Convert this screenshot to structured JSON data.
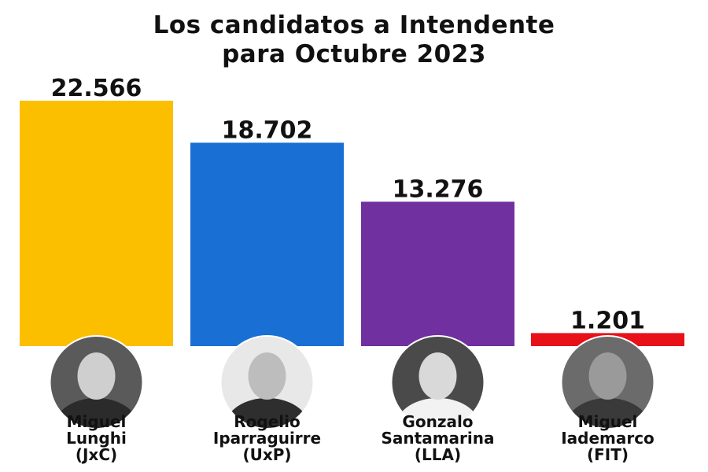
{
  "title_lines": [
    "Los candidatos a Intendente",
    "para Octubre 2023"
  ],
  "chart_data": {
    "type": "bar",
    "title": "Los candidatos a Intendente para Octubre 2023",
    "xlabel": "",
    "ylabel": "",
    "categories": [
      "Miguel Lunghi (JxC)",
      "Rogelio Iparraguirre (UxP)",
      "Gonzalo Santamarina (LLA)",
      "Miguel Iademarco (FIT)"
    ],
    "category_lines": [
      [
        "Miguel",
        "Lunghi",
        "(JxC)"
      ],
      [
        "Rogelio",
        "Iparraguirre",
        "(UxP)"
      ],
      [
        "Gonzalo",
        "Santamarina",
        "(LLA)"
      ],
      [
        "Miguel",
        "Iademarco",
        "(FIT)"
      ]
    ],
    "values": [
      22566,
      18702,
      13276,
      1201
    ],
    "value_labels": [
      "22.566",
      "18.702",
      "13.276",
      "1.201"
    ],
    "colors": [
      "#FBBF00",
      "#1A6FD4",
      "#7030A0",
      "#E8111A"
    ],
    "ylim": [
      0,
      22566
    ],
    "grid": false,
    "legend": "none"
  }
}
